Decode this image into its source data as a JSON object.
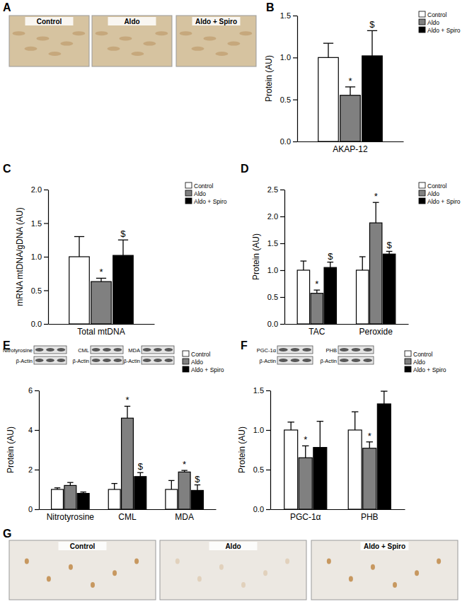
{
  "chart_data": [
    {
      "type": "bar",
      "title": "B",
      "y_label": "Protein (AU)",
      "categories": [
        "AKAP-12"
      ],
      "series": [
        {
          "name": "Control",
          "color": "#ffffff",
          "values": [
            1.0
          ],
          "errors": [
            0.17
          ],
          "annotations": [
            null
          ]
        },
        {
          "name": "Aldo",
          "color": "#808080",
          "values": [
            0.55
          ],
          "errors": [
            0.1
          ],
          "annotations": [
            "*"
          ]
        },
        {
          "name": "Aldo + Spiro",
          "color": "#000000",
          "values": [
            1.02
          ],
          "errors": [
            0.3
          ],
          "annotations": [
            "$"
          ]
        }
      ],
      "ylim": [
        0,
        1.5
      ],
      "yticks": [
        {
          "value": 0,
          "label": "0.0"
        },
        {
          "value": 0.5,
          "label": "0.5"
        },
        {
          "value": 1,
          "label": "1.0"
        },
        {
          "value": 1.5,
          "label": "1.5"
        }
      ],
      "legend": "top-right"
    },
    {
      "type": "bar",
      "title": "C",
      "y_label": "mRNA mtDNA/gDNA (AU)",
      "categories": [
        "Total mtDNA"
      ],
      "series": [
        {
          "name": "Control",
          "color": "#ffffff",
          "values": [
            1.0
          ],
          "errors": [
            0.3
          ],
          "annotations": [
            null
          ]
        },
        {
          "name": "Aldo",
          "color": "#808080",
          "values": [
            0.63
          ],
          "errors": [
            0.05
          ],
          "annotations": [
            "*"
          ]
        },
        {
          "name": "Aldo + Spiro",
          "color": "#000000",
          "values": [
            1.02
          ],
          "errors": [
            0.23
          ],
          "annotations": [
            "$"
          ]
        }
      ],
      "ylim": [
        0,
        2
      ],
      "yticks": [
        {
          "value": 0,
          "label": "0.0"
        },
        {
          "value": 0.5,
          "label": "0.5"
        },
        {
          "value": 1,
          "label": "1.0"
        },
        {
          "value": 1.5,
          "label": "1.5"
        },
        {
          "value": 2,
          "label": "2.0"
        }
      ],
      "legend": "top-right"
    },
    {
      "type": "bar",
      "title": "D",
      "y_label": "Protein (AU)",
      "categories": [
        "TAC",
        "Peroxide"
      ],
      "series": [
        {
          "name": "Control",
          "color": "#ffffff",
          "values": [
            1.0,
            1.0
          ],
          "errors": [
            0.17,
            0.25
          ],
          "annotations": [
            null,
            null
          ]
        },
        {
          "name": "Aldo",
          "color": "#808080",
          "values": [
            0.57,
            1.88
          ],
          "errors": [
            0.06,
            0.38
          ],
          "annotations": [
            "*",
            "*"
          ]
        },
        {
          "name": "Aldo + Spiro",
          "color": "#000000",
          "values": [
            1.05,
            1.3
          ],
          "errors": [
            0.1,
            0.05
          ],
          "annotations": [
            "$",
            "$"
          ]
        }
      ],
      "ylim": [
        0,
        2.5
      ],
      "yticks": [
        {
          "value": 0,
          "label": "0.0"
        },
        {
          "value": 0.5,
          "label": "0.5"
        },
        {
          "value": 1,
          "label": "1.0"
        },
        {
          "value": 1.5,
          "label": "1.5"
        },
        {
          "value": 2,
          "label": "2.0"
        },
        {
          "value": 2.5,
          "label": "2.5"
        }
      ],
      "legend": "top-right"
    },
    {
      "type": "bar",
      "title": "E",
      "y_label": "Protein (AU)",
      "categories": [
        "Nitrotyrosine",
        "CML",
        "MDA"
      ],
      "blots": [
        {
          "label": "Nitrotyrosine",
          "loading": "β-Actin"
        },
        {
          "label": "CML",
          "loading": "β-Actin"
        },
        {
          "label": "MDA",
          "loading": "β-Actin"
        }
      ],
      "series": [
        {
          "name": "Control",
          "color": "#ffffff",
          "values": [
            1.0,
            1.0,
            1.0
          ],
          "errors": [
            0.08,
            0.3,
            0.45
          ],
          "annotations": [
            null,
            null,
            null
          ]
        },
        {
          "name": "Aldo",
          "color": "#808080",
          "values": [
            1.2,
            4.6,
            1.88
          ],
          "errors": [
            0.15,
            0.6,
            0.08
          ],
          "annotations": [
            null,
            "*",
            "*"
          ]
        },
        {
          "name": "Aldo + Spiro",
          "color": "#000000",
          "values": [
            0.8,
            1.65,
            0.95
          ],
          "errors": [
            0.07,
            0.2,
            0.28
          ],
          "annotations": [
            null,
            "$",
            "$"
          ]
        }
      ],
      "ylim": [
        0,
        6
      ],
      "yticks": [
        0,
        2,
        4,
        6
      ],
      "legend": "top-right"
    },
    {
      "type": "bar",
      "title": "F",
      "y_label": "Protein (AU)",
      "categories": [
        "PGC-1α",
        "PHB"
      ],
      "blots": [
        {
          "label": "PGC-1α",
          "loading": "β-Actin"
        },
        {
          "label": "PHB",
          "loading": "β-Actin"
        }
      ],
      "series": [
        {
          "name": "Control",
          "color": "#ffffff",
          "values": [
            1.0,
            1.0
          ],
          "errors": [
            0.1,
            0.23
          ],
          "annotations": [
            null,
            null
          ]
        },
        {
          "name": "Aldo",
          "color": "#808080",
          "values": [
            0.65,
            0.77
          ],
          "errors": [
            0.15,
            0.08
          ],
          "annotations": [
            "*",
            "*"
          ]
        },
        {
          "name": "Aldo + Spiro",
          "color": "#000000",
          "values": [
            0.78,
            1.33
          ],
          "errors": [
            0.33,
            0.16
          ],
          "annotations": [
            null,
            null
          ]
        }
      ],
      "ylim": [
        0,
        1.5
      ],
      "yticks": [
        {
          "value": 0,
          "label": "0.0"
        },
        {
          "value": 0.5,
          "label": "0.5"
        },
        {
          "value": 1,
          "label": "1.0"
        },
        {
          "value": 1.5,
          "label": "1.5"
        }
      ],
      "legend": "top-right"
    }
  ],
  "figure": {
    "panels": [
      {
        "label": "A",
        "images": [
          "Control",
          "Aldo",
          "Aldo + Spiro"
        ]
      },
      {
        "label": "G",
        "images": [
          "Control",
          "Aldo",
          "Aldo + Spiro"
        ]
      }
    ]
  }
}
